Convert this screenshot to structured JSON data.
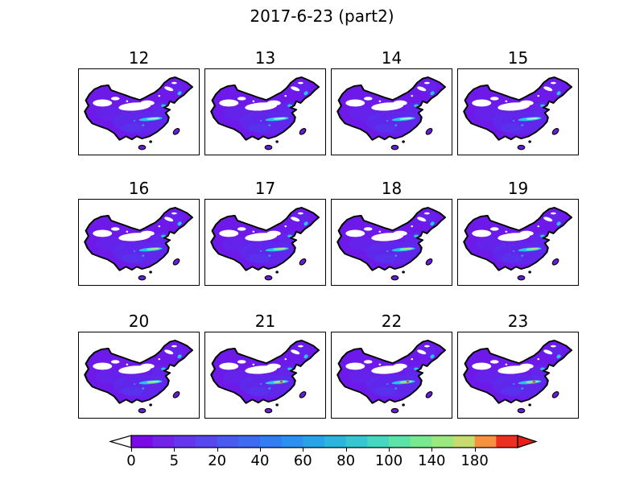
{
  "figure": {
    "title": "2017-6-23 (part2)"
  },
  "panels": [
    {
      "label": "12",
      "variant": "base"
    },
    {
      "label": "13",
      "variant": "base"
    },
    {
      "label": "14",
      "variant": "base"
    },
    {
      "label": "15",
      "variant": "base"
    },
    {
      "label": "16",
      "variant": "hot"
    },
    {
      "label": "17",
      "variant": "hot"
    },
    {
      "label": "18",
      "variant": "hot"
    },
    {
      "label": "19",
      "variant": "hot"
    },
    {
      "label": "20",
      "variant": "hot"
    },
    {
      "label": "21",
      "variant": "extreme"
    },
    {
      "label": "22",
      "variant": "extreme"
    },
    {
      "label": "23",
      "variant": "extreme"
    }
  ],
  "colorbar": {
    "tick_labels": [
      "0",
      "5",
      "20",
      "40",
      "60",
      "80",
      "100",
      "140",
      "180"
    ],
    "band_colors": [
      "#7c0ae8",
      "#7322e9",
      "#6536eb",
      "#5648ee",
      "#485af0",
      "#3c6cf2",
      "#317ef3",
      "#2b90f1",
      "#28a2e9",
      "#2cb4de",
      "#37c6d1",
      "#47d6bf",
      "#5ce3a7",
      "#77ea8f",
      "#9ae97e",
      "#c6dc6f",
      "#f6913f",
      "#ed2f20"
    ],
    "under_arrow_color": "#ffffff",
    "over_arrow_color": "#e62019"
  },
  "colors": {
    "land": "#6d19ea",
    "mottle": "#4746f1",
    "cyan": "#27c3ea",
    "core": "#9df2e2",
    "hot": "#a7e97c",
    "halo": "#f2a03c",
    "red": "#e8281c",
    "stroke": "#000000"
  },
  "chart_data": {
    "type": "heatmap",
    "title": "2017-6-23 (part2)",
    "grid": {
      "rows": 3,
      "cols": 4
    },
    "subplot_labels": [
      "12",
      "13",
      "14",
      "15",
      "16",
      "17",
      "18",
      "19",
      "20",
      "21",
      "22",
      "23"
    ],
    "subplot_label_meaning": "hour of day on 2017-6-23",
    "region": "China (country outline maps, identical domain in every subplot)",
    "colorbar": {
      "orientation": "horizontal",
      "position": "bottom",
      "tick_values": [
        0,
        5,
        20,
        40,
        60,
        80,
        100,
        140,
        180
      ],
      "extend": "both",
      "n_discrete_bands": 18,
      "colormap": "rainbow-like: violet -> blue -> cyan -> green -> yellow-green -> orange -> red"
    },
    "qualitative_field_summary": "Most of China is shaded in the lowest 0-5 violet band with blue mottling; an east-west streak of elevated values (roughly 20-80) runs along the middle/lower Yangtze valley in every hour; smaller cyan maxima appear near the Bohai coast and the northeast; the streak intensifies from hour 16 onward (greener core) and isolated cells above ~100-180 (orange/red pixels) appear at hours 21-23; white gaps with no data cover the Taklamakan and Gobi desert regions."
  }
}
